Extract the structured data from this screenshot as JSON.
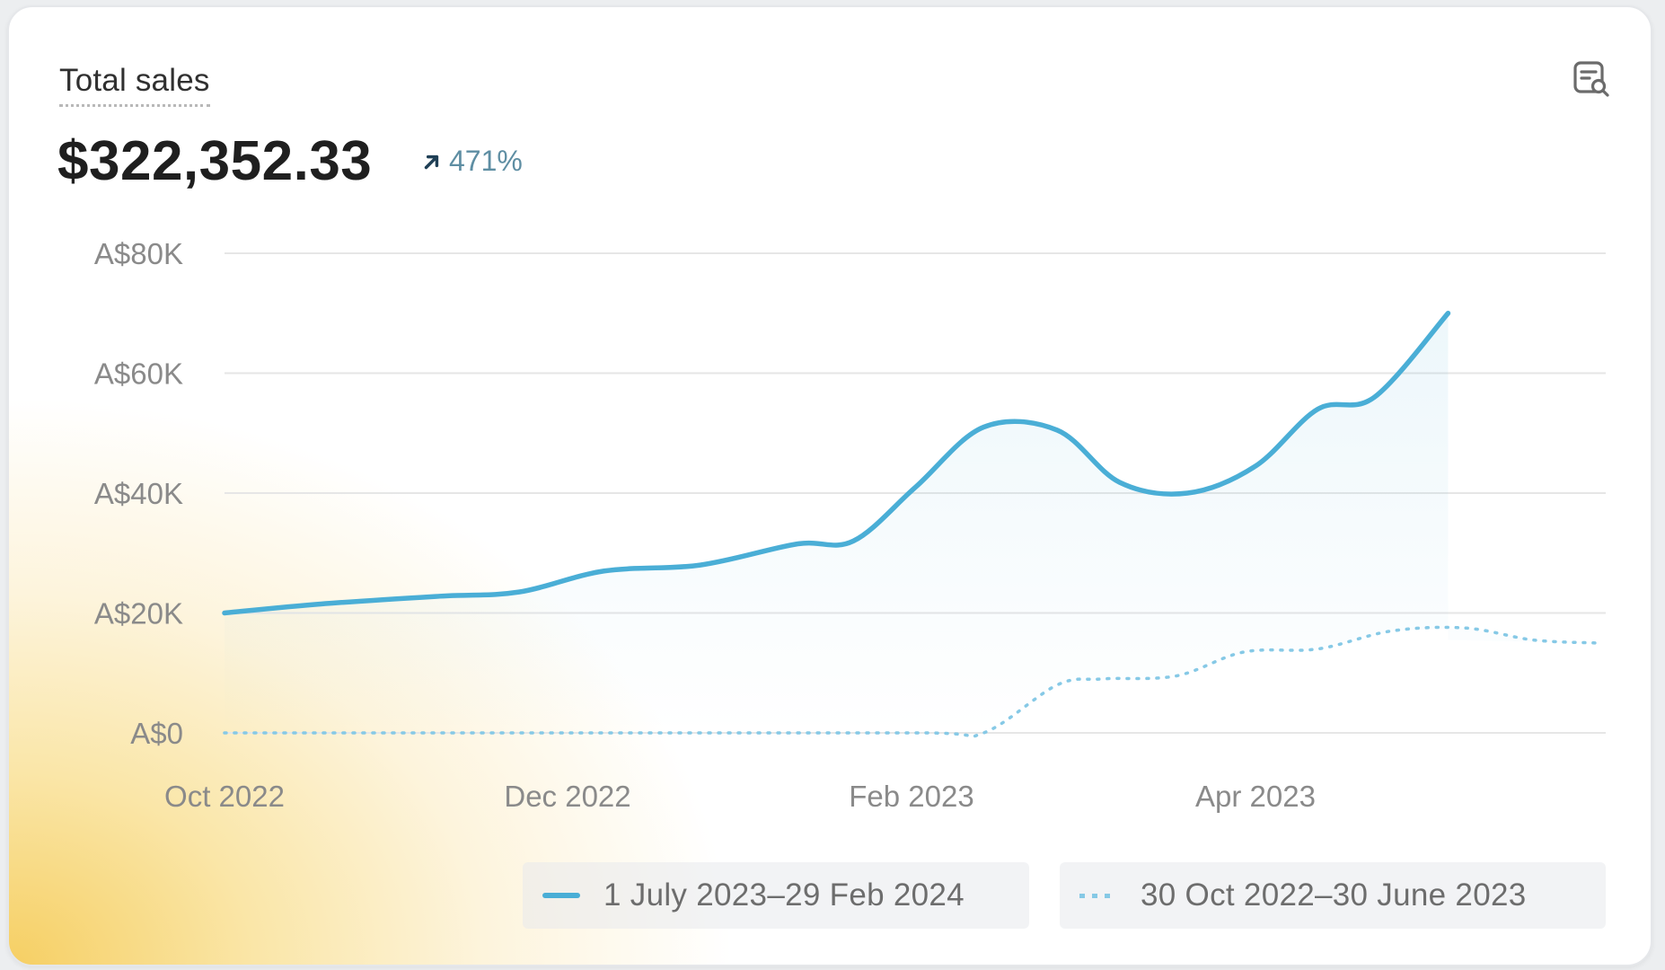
{
  "card": {
    "title": "Total sales",
    "total": "$322,352.33",
    "change": "471%",
    "explore_icon": "chart-explore-icon"
  },
  "chart_data": {
    "type": "line",
    "x_tick_labels": [
      "Oct 2022",
      "Dec 2022",
      "Feb 2023",
      "Apr 2023"
    ],
    "y_tick_labels": [
      "A$0",
      "A$20K",
      "A$40K",
      "A$60K",
      "A$80K"
    ],
    "ylim": [
      0,
      80000
    ],
    "grid": true,
    "legend_position": "bottom-right",
    "series": [
      {
        "name": "1 July 2023–29 Feb 2024",
        "style": "solid",
        "color": "#4aaed6",
        "x": [
          "2022-10-01",
          "2022-10-18",
          "2022-11-08",
          "2022-11-22",
          "2022-12-07",
          "2022-12-24",
          "2023-01-10",
          "2023-01-20",
          "2023-01-31",
          "2023-02-12",
          "2023-02-25",
          "2023-03-08",
          "2023-03-20",
          "2023-04-01",
          "2023-04-12",
          "2023-04-22",
          "2023-05-05"
        ],
        "y": [
          20000,
          21500,
          22800,
          23500,
          27000,
          28000,
          31500,
          32000,
          41000,
          51000,
          50500,
          41800,
          40000,
          44500,
          54000,
          56000,
          70000
        ]
      },
      {
        "name": "30 Oct 2022–30 June 2023",
        "style": "dotted",
        "color": "#86c9e6",
        "x": [
          "2022-10-01",
          "2022-12-01",
          "2023-02-01",
          "2023-02-12",
          "2023-02-25",
          "2023-03-05",
          "2023-03-18",
          "2023-03-30",
          "2023-04-12",
          "2023-04-25",
          "2023-05-08",
          "2023-05-20",
          "2023-05-31"
        ],
        "y": [
          0,
          0,
          0,
          0,
          8000,
          9000,
          9500,
          13500,
          14000,
          17000,
          17500,
          15500,
          15000
        ]
      }
    ]
  },
  "legend": {
    "items": [
      {
        "label": "1 July 2023–29 Feb 2024",
        "color": "#4aaed6",
        "style": "solid"
      },
      {
        "label": "30 Oct 2022–30 June 2023",
        "color": "#86c9e6",
        "style": "dotted"
      }
    ]
  }
}
